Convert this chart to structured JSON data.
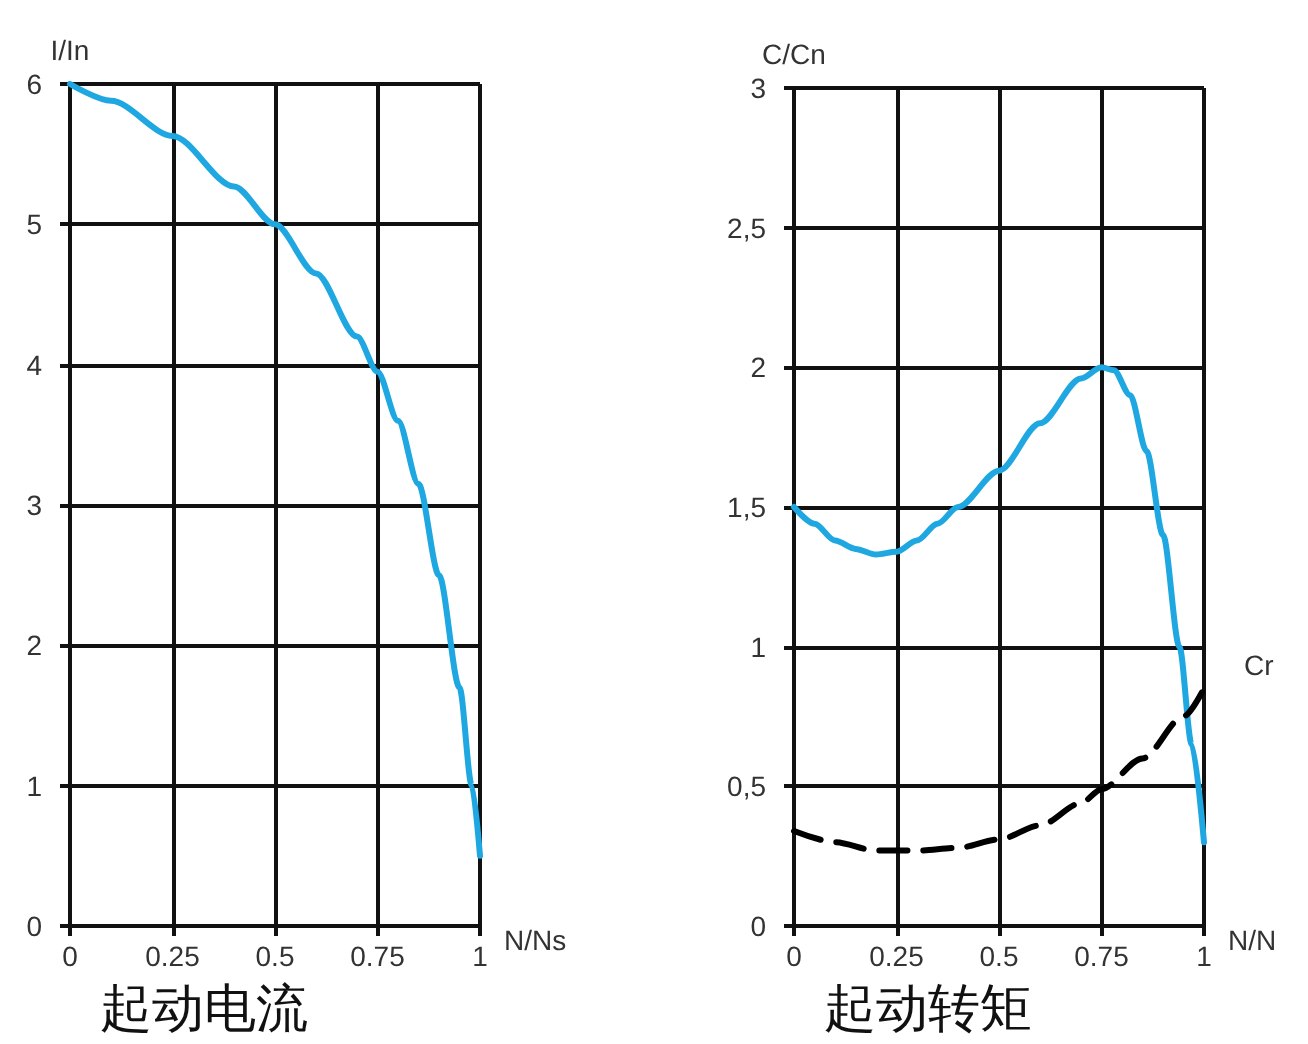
{
  "chart_data": [
    {
      "type": "line",
      "title": "起动电流",
      "xlabel": "N/Ns",
      "ylabel": "I/In",
      "xlim": [
        0,
        1
      ],
      "xticks": [
        0,
        0.25,
        0.5,
        0.75,
        1
      ],
      "ylim": [
        0,
        6
      ],
      "yticks": [
        0,
        1,
        2,
        3,
        4,
        5,
        6
      ],
      "grid": true,
      "legend": false,
      "marker": "none",
      "series": [
        {
          "color": "#1ea7e1",
          "line_style": "solid",
          "x": [
            0,
            0.1,
            0.25,
            0.4,
            0.5,
            0.6,
            0.7,
            0.75,
            0.8,
            0.85,
            0.9,
            0.95,
            0.98,
            1
          ],
          "values": [
            6,
            5.88,
            5.63,
            5.27,
            5,
            4.65,
            4.2,
            3.95,
            3.6,
            3.15,
            2.5,
            1.7,
            1.0,
            0.5
          ]
        }
      ]
    },
    {
      "type": "line",
      "title": "起动转矩",
      "xlabel": "N/N",
      "ylabel": "C/Cn",
      "xlim": [
        0,
        1
      ],
      "xticks": [
        0,
        0.25,
        0.5,
        0.75,
        1
      ],
      "ylim": [
        0,
        3
      ],
      "yticks": [
        0,
        {
          "value": 0.5,
          "label": "0,5"
        },
        1,
        {
          "value": 1.5,
          "label": "1,5"
        },
        2,
        {
          "value": 2.5,
          "label": "2,5"
        },
        3
      ],
      "grid": true,
      "legend": false,
      "marker": "none",
      "series": [
        {
          "color": "#1ea7e1",
          "line_style": "solid",
          "x": [
            0,
            0.05,
            0.1,
            0.15,
            0.2,
            0.25,
            0.3,
            0.35,
            0.4,
            0.5,
            0.6,
            0.7,
            0.75,
            0.78,
            0.82,
            0.86,
            0.9,
            0.94,
            0.97,
            1
          ],
          "values": [
            1.5,
            1.44,
            1.38,
            1.35,
            1.33,
            1.34,
            1.38,
            1.44,
            1.5,
            1.63,
            1.8,
            1.96,
            2.0,
            1.99,
            1.9,
            1.7,
            1.4,
            1.0,
            0.65,
            0.3
          ]
        },
        {
          "name": "Cr",
          "color": "#000000",
          "line_style": "dashed",
          "x": [
            0,
            0.1,
            0.2,
            0.3,
            0.4,
            0.5,
            0.6,
            0.7,
            0.75,
            0.85,
            0.95,
            1
          ],
          "values": [
            0.34,
            0.3,
            0.27,
            0.27,
            0.28,
            0.31,
            0.36,
            0.44,
            0.49,
            0.6,
            0.75,
            0.85
          ]
        }
      ]
    }
  ]
}
